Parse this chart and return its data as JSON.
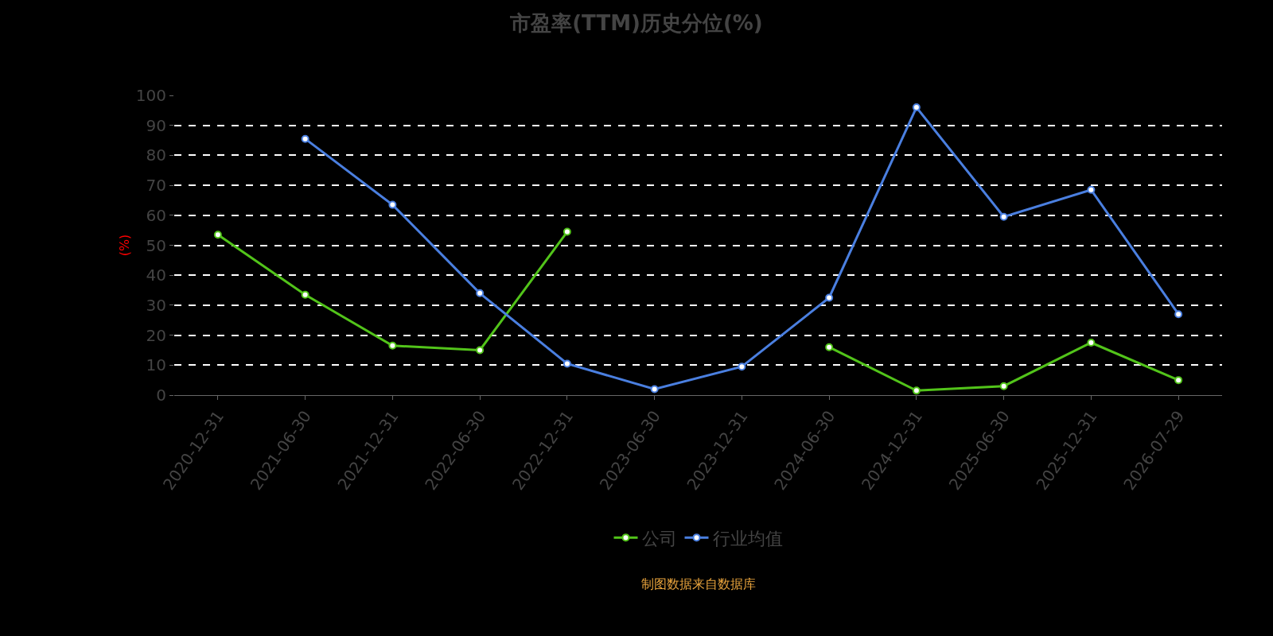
{
  "chart_data": {
    "type": "line",
    "title": "市盈率(TTM)历史分位(%)",
    "ylabel": "(%)",
    "categories": [
      "2020-12-31",
      "2021-06-30",
      "2021-12-31",
      "2022-06-30",
      "2022-12-31",
      "2023-06-30",
      "2023-12-31",
      "2024-06-30",
      "2024-12-31",
      "2025-06-30",
      "2025-12-31",
      "2026-07-29"
    ],
    "series": [
      {
        "name": "公司",
        "color": "#52c41a",
        "values": [
          53.5,
          33.5,
          16.5,
          15,
          54.5,
          null,
          null,
          16,
          1.5,
          3,
          17.5,
          5
        ]
      },
      {
        "name": "行业均值",
        "color": "#4a7fe0",
        "values": [
          null,
          85.5,
          63.5,
          34,
          10.5,
          2,
          9.5,
          32.5,
          96,
          59.5,
          68.5,
          27
        ]
      }
    ],
    "ylim": [
      0,
      100
    ],
    "yticks": [
      0,
      10,
      20,
      30,
      40,
      50,
      60,
      70,
      80,
      90,
      100
    ],
    "grid": "y",
    "legend": "bottom",
    "marker": "circle",
    "line_style": "solid",
    "annotations": [
      "制图数据来自数据库"
    ]
  }
}
